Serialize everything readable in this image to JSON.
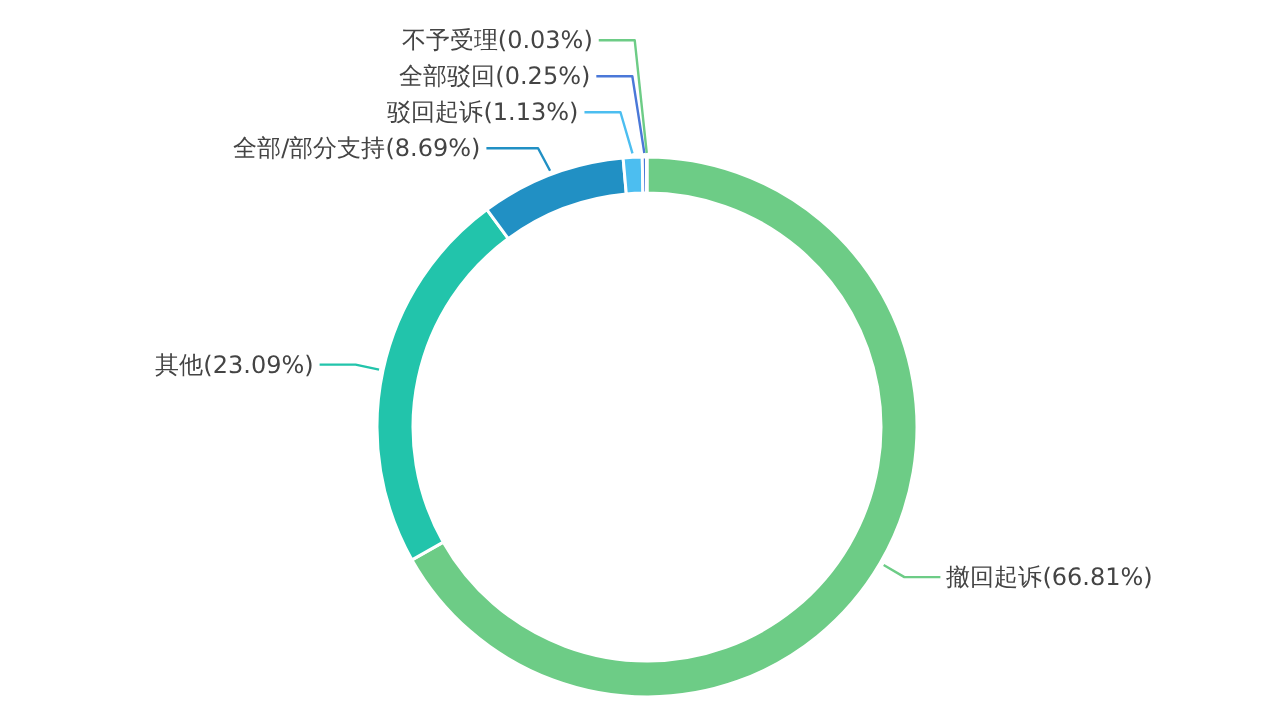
{
  "chart_data": {
    "type": "donut",
    "categories": [
      "撤回起诉",
      "其他",
      "全部/部分支持",
      "驳回起诉",
      "全部驳回",
      "不予受理"
    ],
    "values": [
      66.81,
      23.09,
      8.69,
      1.13,
      0.25,
      0.03
    ],
    "colors": [
      "#6dcc86",
      "#22c4ab",
      "#2190c4",
      "#4cbef0",
      "#4a78d8",
      "#6dcc86"
    ],
    "value_labels": [
      "(66.81%)",
      "(23.09%)",
      "(8.69%)",
      "(1.13%)",
      "(0.25%)",
      "(0.03%)"
    ]
  }
}
